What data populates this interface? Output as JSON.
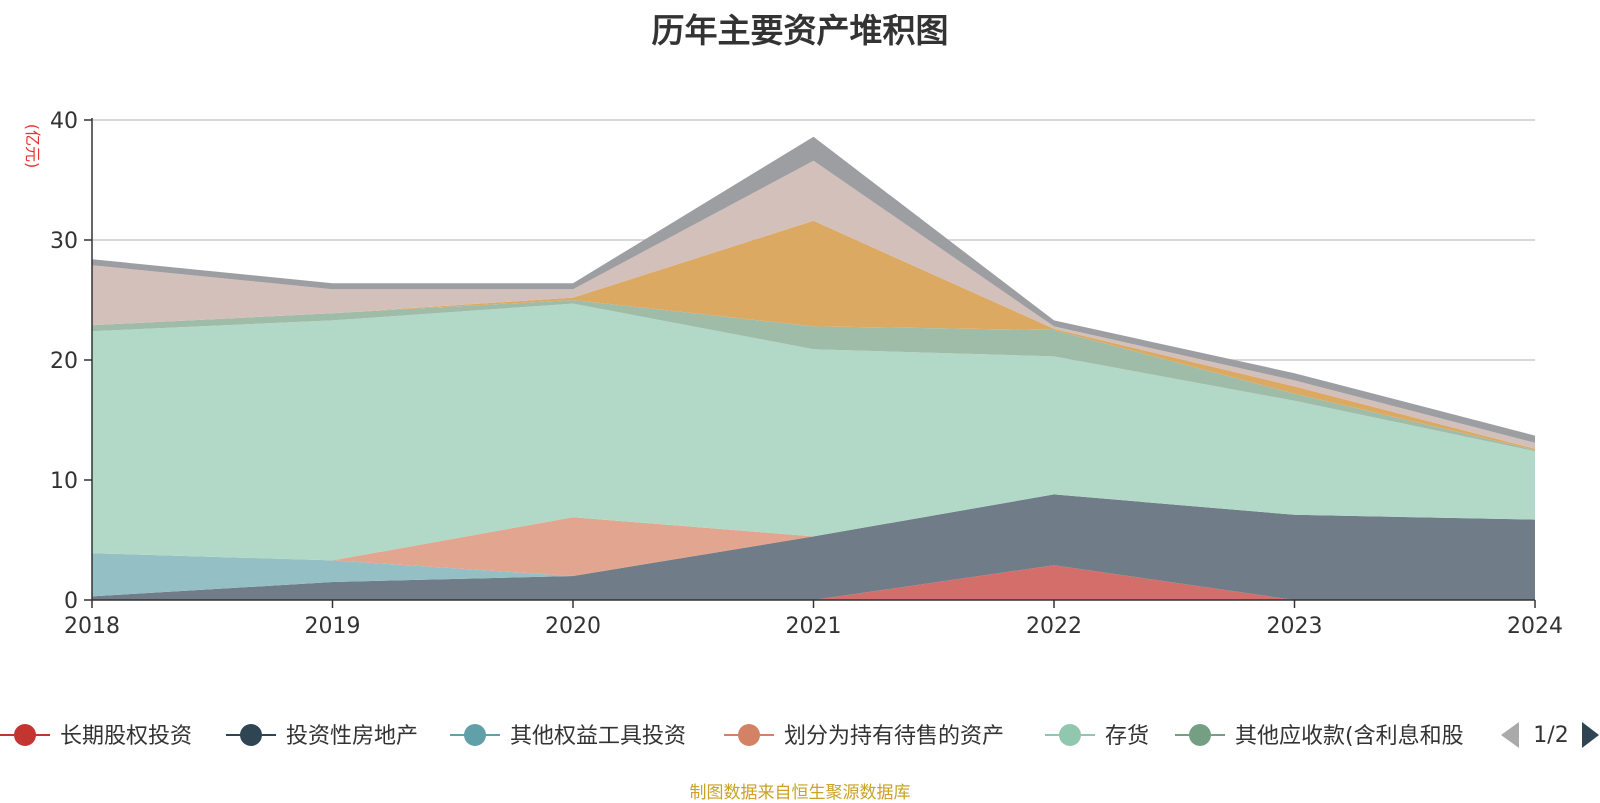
{
  "chart_data": {
    "type": "area",
    "title": "历年主要资产堆积图",
    "ylabel": "(亿元)",
    "xlabel": "",
    "x": [
      "2018",
      "2019",
      "2020",
      "2021",
      "2022",
      "2023",
      "2024"
    ],
    "ylim": [
      0,
      40
    ],
    "yticks": [
      "0",
      "10",
      "20",
      "30",
      "40"
    ],
    "grid": true,
    "stacked": true,
    "legend_position": "bottom",
    "series": [
      {
        "name": "长期股权投资",
        "color": "#c23531",
        "fill": "#d46e6a",
        "values": [
          0,
          0,
          0,
          0,
          2.9,
          0,
          0
        ]
      },
      {
        "name": "投资性房地产",
        "color": "#2f4554",
        "fill": "#707d88",
        "values": [
          0.3,
          1.5,
          2.0,
          5.3,
          5.9,
          7.1,
          6.7
        ]
      },
      {
        "name": "其他权益工具投资",
        "color": "#61a0a8",
        "fill": "#94bfc4",
        "values": [
          3.6,
          1.8,
          0,
          0,
          0,
          0,
          0
        ]
      },
      {
        "name": "划分为持有待售的资产",
        "color": "#d48265",
        "fill": "#e2a590",
        "values": [
          0,
          0,
          4.9,
          0,
          0,
          0,
          0
        ]
      },
      {
        "name": "存货",
        "color": "#91c7ae",
        "fill": "#b2d9c7",
        "values": [
          18.5,
          20.0,
          17.8,
          15.6,
          11.5,
          9.5,
          5.7
        ]
      },
      {
        "name": "其他应收款(含利息和股",
        "color": "#749f83",
        "fill": "#9fbca9",
        "values": [
          0.5,
          0.6,
          0.3,
          1.9,
          2.2,
          0.6,
          0.1
        ]
      },
      {
        "name": "",
        "color": "#ca8622",
        "fill": "#dca962",
        "values": [
          0,
          0,
          0.2,
          8.8,
          0.1,
          0.6,
          0.1
        ]
      },
      {
        "name": "",
        "color": "#bda29a",
        "fill": "#d3c0bb",
        "values": [
          5.0,
          2.0,
          0.7,
          5.0,
          0.2,
          0.5,
          0.5
        ]
      },
      {
        "name": "",
        "color": "#6e7074",
        "fill": "#9c9ea1",
        "values": [
          0.5,
          0.5,
          0.5,
          2.0,
          0.5,
          0.6,
          0.6
        ]
      }
    ]
  },
  "legend": {
    "items": [
      {
        "label": "长期股权投资",
        "color": "#c23531"
      },
      {
        "label": "投资性房地产",
        "color": "#2f4554"
      },
      {
        "label": "其他权益工具投资",
        "color": "#61a0a8"
      },
      {
        "label": "划分为持有待售的资产",
        "color": "#d48265"
      },
      {
        "label": "存货",
        "color": "#91c7ae"
      },
      {
        "label": "其他应收款(含利息和股",
        "color": "#749f83"
      }
    ],
    "page_indicator": "1/2"
  },
  "source_note": "制图数据来自恒生聚源数据库"
}
